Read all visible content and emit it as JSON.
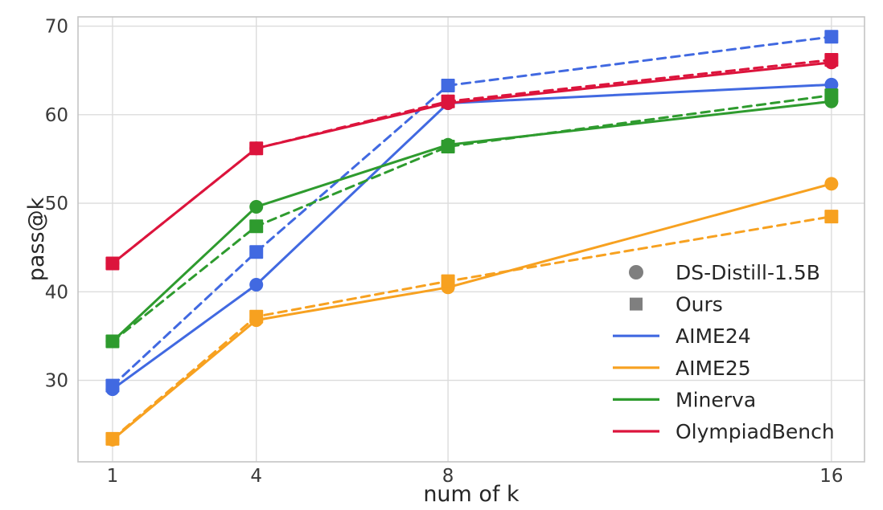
{
  "chart_data": {
    "type": "line",
    "title": "",
    "xlabel": "num of k",
    "ylabel": "pass@k",
    "x": [
      1,
      4,
      8,
      16
    ],
    "xticks": [
      1,
      4,
      8,
      16
    ],
    "yticks": [
      30,
      40,
      50,
      60,
      70
    ],
    "xlim": [
      0.28,
      16.69
    ],
    "ylim": [
      20.8,
      71.05
    ],
    "x_scale": "linear",
    "grid": true,
    "legend_position": "right-center",
    "marker_meaning": {
      "circle": "DS-Distill-1.5B",
      "square": "Ours"
    },
    "colors": {
      "AIME24": "#4169E1",
      "AIME25": "#F7A120",
      "Minerva": "#2E9B2E",
      "OlympiadBench": "#DC143C",
      "legend_marker": "#7F7F7F",
      "grid": "#DCDCDC",
      "spine": "#C4C4C4",
      "tick_text": "#3A3A3A",
      "label_text": "#262626"
    },
    "series": [
      {
        "benchmark": "AIME24",
        "model": "DS-Distill-1.5B",
        "style": "solid",
        "marker": "circle",
        "color": "#4169E1",
        "values": [
          29.0,
          40.8,
          61.3,
          63.4
        ]
      },
      {
        "benchmark": "AIME24",
        "model": "Ours",
        "style": "dashed",
        "marker": "square",
        "color": "#4169E1",
        "values": [
          29.4,
          44.5,
          63.3,
          68.8
        ]
      },
      {
        "benchmark": "AIME25",
        "model": "DS-Distill-1.5B",
        "style": "solid",
        "marker": "circle",
        "color": "#F7A120",
        "values": [
          23.3,
          36.8,
          40.5,
          52.2
        ]
      },
      {
        "benchmark": "AIME25",
        "model": "Ours",
        "style": "dashed",
        "marker": "square",
        "color": "#F7A120",
        "values": [
          23.4,
          37.2,
          41.2,
          48.5
        ]
      },
      {
        "benchmark": "Minerva",
        "model": "DS-Distill-1.5B",
        "style": "solid",
        "marker": "circle",
        "color": "#2E9B2E",
        "values": [
          34.4,
          49.6,
          56.6,
          61.5
        ]
      },
      {
        "benchmark": "Minerva",
        "model": "Ours",
        "style": "dashed",
        "marker": "square",
        "color": "#2E9B2E",
        "values": [
          34.4,
          47.4,
          56.4,
          62.2
        ]
      },
      {
        "benchmark": "OlympiadBench",
        "model": "DS-Distill-1.5B",
        "style": "solid",
        "marker": "circle",
        "color": "#DC143C",
        "values": [
          43.2,
          56.2,
          61.3,
          65.9
        ]
      },
      {
        "benchmark": "OlympiadBench",
        "model": "Ours",
        "style": "dashed",
        "marker": "square",
        "color": "#DC143C",
        "values": [
          43.2,
          56.2,
          61.5,
          66.2
        ]
      }
    ],
    "legend": {
      "entries": [
        {
          "label": "DS-Distill-1.5B",
          "swatch": "circle",
          "color": "#7F7F7F"
        },
        {
          "label": "Ours",
          "swatch": "square",
          "color": "#7F7F7F"
        },
        {
          "label": "AIME24",
          "swatch": "line",
          "color": "#4169E1"
        },
        {
          "label": "AIME25",
          "swatch": "line",
          "color": "#F7A120"
        },
        {
          "label": "Minerva",
          "swatch": "line",
          "color": "#2E9B2E"
        },
        {
          "label": "OlympiadBench",
          "swatch": "line",
          "color": "#DC143C"
        }
      ]
    }
  }
}
